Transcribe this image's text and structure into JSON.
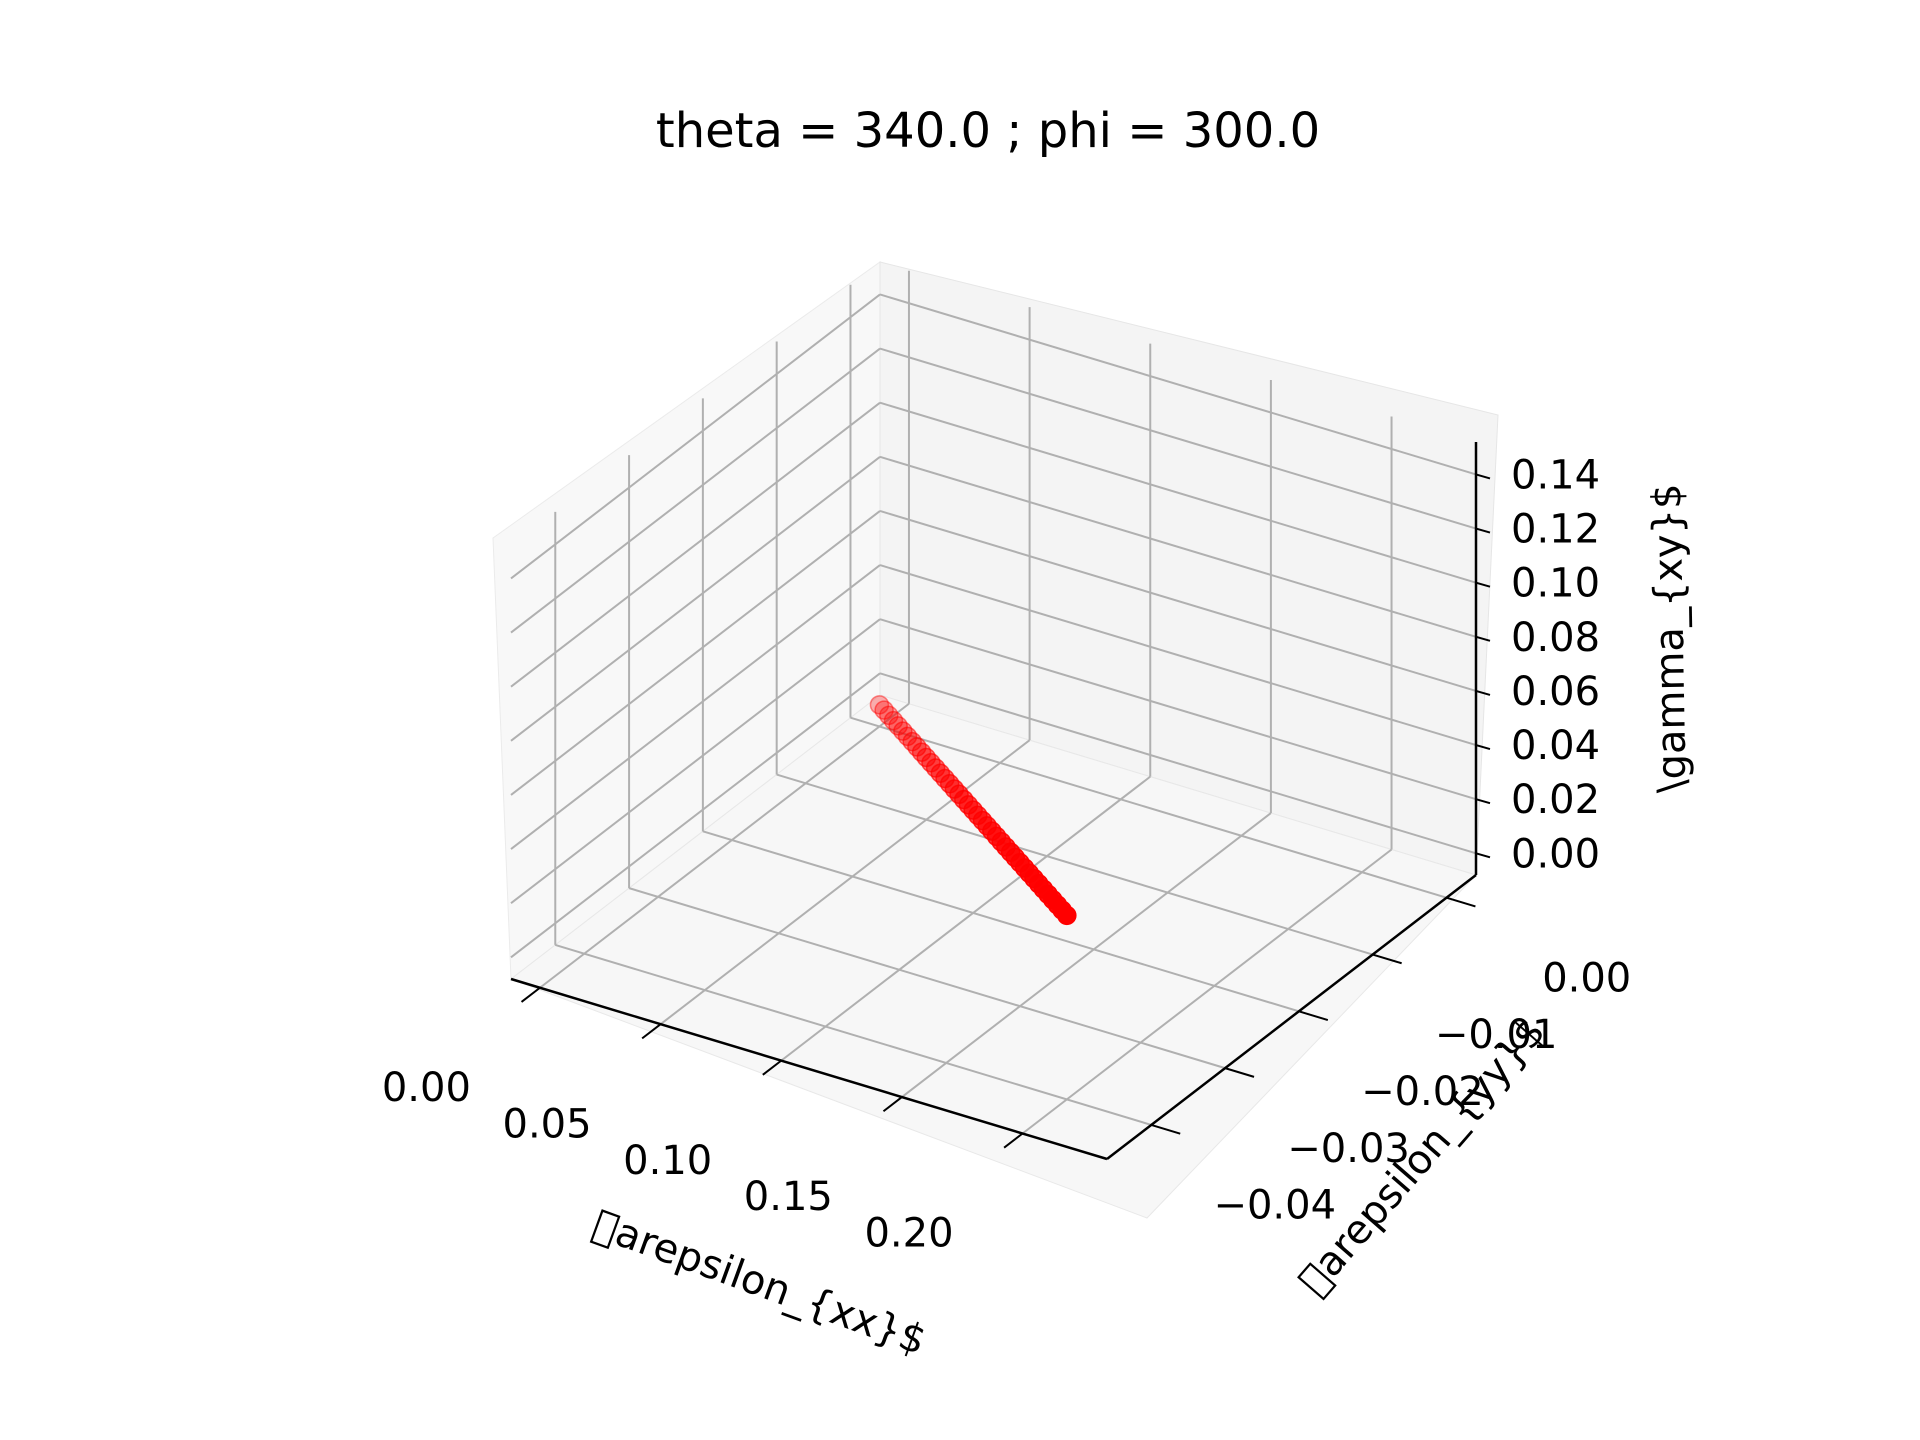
{
  "chart_data": {
    "type": "scatter",
    "projection": "3d",
    "title": "theta = 340.0 ; phi = 300.0",
    "xlabel": "\u0000arepsilon_{xx}$",
    "ylabel": "\u0000arepsilon_{yy}$",
    "zlabel": "\\gamma_{xy}$",
    "x_ticks": [
      "0.00",
      "0.05",
      "0.10",
      "0.15",
      "0.20"
    ],
    "y_ticks": [
      "0.00",
      "−0.01",
      "−0.02",
      "−0.03",
      "−0.04"
    ],
    "z_ticks": [
      "0.00",
      "0.02",
      "0.04",
      "0.06",
      "0.08",
      "0.10",
      "0.12",
      "0.14"
    ],
    "xlim": [
      -0.012,
      0.235
    ],
    "ylim": [
      -0.046,
      0.004
    ],
    "zlim": [
      -0.008,
      0.152
    ],
    "grid": true,
    "marker_color": "#ff0000",
    "series": [
      {
        "x": [
          0.0,
          0.005,
          0.01,
          0.015,
          0.02,
          0.025,
          0.03,
          0.035,
          0.04,
          0.045,
          0.05,
          0.055,
          0.06,
          0.065,
          0.07,
          0.075,
          0.08,
          0.085,
          0.09,
          0.095,
          0.1,
          0.105,
          0.11,
          0.115,
          0.12,
          0.125,
          0.13,
          0.135,
          0.14,
          0.145,
          0.15,
          0.155,
          0.16,
          0.165,
          0.17,
          0.175,
          0.18,
          0.185,
          0.19,
          0.195,
          0.2
        ],
        "y": [
          0.0,
          -0.001,
          -0.002,
          -0.003,
          -0.004,
          -0.005,
          -0.006,
          -0.007,
          -0.008,
          -0.009,
          -0.01,
          -0.011,
          -0.012,
          -0.013,
          -0.014,
          -0.015,
          -0.016,
          -0.017,
          -0.018,
          -0.019,
          -0.02,
          -0.021,
          -0.022,
          -0.023,
          -0.024,
          -0.025,
          -0.026,
          -0.027,
          -0.028,
          -0.029,
          -0.03,
          -0.031,
          -0.032,
          -0.033,
          -0.034,
          -0.035,
          -0.036,
          -0.037,
          -0.038,
          -0.039,
          -0.04
        ],
        "z": [
          0.0,
          0.0015,
          0.003,
          0.0045,
          0.006,
          0.0075,
          0.009,
          0.0105,
          0.012,
          0.0135,
          0.015,
          0.0165,
          0.018,
          0.0195,
          0.021,
          0.0225,
          0.024,
          0.0255,
          0.027,
          0.0285,
          0.03,
          0.0315,
          0.033,
          0.0345,
          0.036,
          0.0375,
          0.039,
          0.0405,
          0.042,
          0.0435,
          0.045,
          0.0465,
          0.048,
          0.0495,
          0.051,
          0.0525,
          0.054,
          0.0555,
          0.057,
          0.0585,
          0.06
        ]
      }
    ]
  }
}
